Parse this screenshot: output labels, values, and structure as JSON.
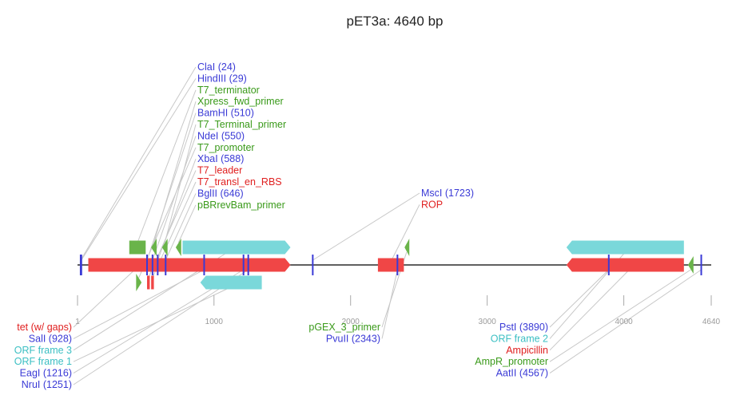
{
  "title": "pET3a: 4640 bp",
  "length": 4640,
  "colors": {
    "restriction": "#3a3ad6",
    "red_feature": "#f04646",
    "cyan_feature": "#7ad8da",
    "green_feature": "#6ab44a",
    "label_red": "#e02020",
    "label_cyan": "#3bbfc3",
    "label_green": "#3a9a1a",
    "leader": "#c8c8c8",
    "axis": "#000000",
    "ruler": "#aaaaaa"
  },
  "ticks": [
    {
      "pos": 1,
      "label": "1"
    },
    {
      "pos": 1000,
      "label": "1000"
    },
    {
      "pos": 2000,
      "label": "2000"
    },
    {
      "pos": 3000,
      "label": "3000"
    },
    {
      "pos": 4000,
      "label": "4000"
    },
    {
      "pos": 4640,
      "label": "4640"
    }
  ],
  "sites": [
    {
      "name": "ClaI (24)",
      "pos": 24
    },
    {
      "name": "HindIII (29)",
      "pos": 29
    },
    {
      "name": "BamHI (510)",
      "pos": 510
    },
    {
      "name": "NdeI (550)",
      "pos": 550
    },
    {
      "name": "XbaI (588)",
      "pos": 588
    },
    {
      "name": "BglII (646)",
      "pos": 646
    },
    {
      "name": "SalI (928)",
      "pos": 928
    },
    {
      "name": "EagI (1216)",
      "pos": 1216
    },
    {
      "name": "NruI (1251)",
      "pos": 1251
    },
    {
      "name": "MscI (1723)",
      "pos": 1723
    },
    {
      "name": "PvuII (2343)",
      "pos": 2343
    },
    {
      "name": "PstI (3890)",
      "pos": 3890
    },
    {
      "name": "AatII (4567)",
      "pos": 4567
    }
  ],
  "features": [
    {
      "name": "tet (w/ gaps)",
      "color": "red",
      "row": "main",
      "start": 80,
      "end": 1560,
      "dir": "fwd"
    },
    {
      "name": "T7_terminator",
      "color": "green",
      "row": "top",
      "start": 380,
      "end": 500,
      "dir": "none"
    },
    {
      "name": "Xpress_fwd_primer",
      "color": "green",
      "row": "top",
      "start": 540,
      "end": 580,
      "dir": "rev"
    },
    {
      "name": "T7_Terminal_primer",
      "color": "green",
      "row": "top",
      "start": 620,
      "end": 660,
      "dir": "rev"
    },
    {
      "name": "T7_promoter",
      "color": "green",
      "row": "bot",
      "start": 430,
      "end": 470,
      "dir": "fwd"
    },
    {
      "name": "T7_leader",
      "color": "red",
      "row": "bot",
      "start": 510,
      "end": 530,
      "dir": "none"
    },
    {
      "name": "T7_transl_en_RBS",
      "color": "red",
      "row": "bot",
      "start": 540,
      "end": 560,
      "dir": "none"
    },
    {
      "name": "pBRrevBam_primer",
      "color": "green",
      "row": "top",
      "start": 720,
      "end": 760,
      "dir": "rev"
    },
    {
      "name": "ORF frame 3",
      "color": "cyan",
      "row": "top",
      "start": 770,
      "end": 1560,
      "dir": "fwd"
    },
    {
      "name": "ORF frame 1",
      "color": "cyan",
      "row": "bot",
      "start": 900,
      "end": 1350,
      "dir": "rev"
    },
    {
      "name": "ROP",
      "color": "red",
      "row": "main",
      "start": 2200,
      "end": 2390,
      "dir": "none"
    },
    {
      "name": "pGEX_3_primer",
      "color": "green",
      "row": "top",
      "start": 2395,
      "end": 2430,
      "dir": "rev"
    },
    {
      "name": "Ampicillin",
      "color": "red",
      "row": "main",
      "start": 3580,
      "end": 4440,
      "dir": "rev"
    },
    {
      "name": "ORF frame 2",
      "color": "cyan",
      "row": "top",
      "start": 3580,
      "end": 4440,
      "dir": "rev"
    },
    {
      "name": "AmpR_promoter",
      "color": "green",
      "row": "main",
      "start": 4470,
      "end": 4510,
      "dir": "rev"
    }
  ],
  "labels_top_left": [
    {
      "text": "ClaI (24)",
      "color": "restriction",
      "target": 24,
      "row": "main"
    },
    {
      "text": "HindIII (29)",
      "color": "restriction",
      "target": 29,
      "row": "main"
    },
    {
      "text": "T7_terminator",
      "color": "label_green",
      "target": 440,
      "row": "top"
    },
    {
      "text": "Xpress_fwd_primer",
      "color": "label_green",
      "target": 560,
      "row": "top"
    },
    {
      "text": "BamHI (510)",
      "color": "restriction",
      "target": 510,
      "row": "main"
    },
    {
      "text": "T7_Terminal_primer",
      "color": "label_green",
      "target": 640,
      "row": "top"
    },
    {
      "text": "NdeI (550)",
      "color": "restriction",
      "target": 550,
      "row": "main"
    },
    {
      "text": "T7_promoter",
      "color": "label_green",
      "target": 450,
      "row": "bot"
    },
    {
      "text": "XbaI (588)",
      "color": "restriction",
      "target": 588,
      "row": "main"
    },
    {
      "text": "T7_leader",
      "color": "label_red",
      "target": 520,
      "row": "bot"
    },
    {
      "text": "T7_transl_en_RBS",
      "color": "label_red",
      "target": 550,
      "row": "bot"
    },
    {
      "text": "BglII (646)",
      "color": "restriction",
      "target": 646,
      "row": "main"
    },
    {
      "text": "pBRrevBam_primer",
      "color": "label_green",
      "target": 740,
      "row": "top"
    }
  ],
  "labels_top_mid": [
    {
      "text": "MscI (1723)",
      "color": "restriction",
      "target": 1723,
      "row": "main"
    },
    {
      "text": "ROP",
      "color": "label_red",
      "target": 2300,
      "row": "main"
    }
  ],
  "labels_bottom_left": [
    {
      "text": "tet (w/ gaps)",
      "color": "label_red",
      "target": 420,
      "row": "main"
    },
    {
      "text": "SalI (928)",
      "color": "restriction",
      "target": 928,
      "row": "main"
    },
    {
      "text": "ORF frame 3",
      "color": "label_cyan",
      "target": 1100,
      "row": "top"
    },
    {
      "text": "ORF frame 1",
      "color": "label_cyan",
      "target": 1120,
      "row": "bot"
    },
    {
      "text": "EagI (1216)",
      "color": "restriction",
      "target": 1216,
      "row": "main"
    },
    {
      "text": "NruI (1251)",
      "color": "restriction",
      "target": 1251,
      "row": "main"
    }
  ],
  "labels_bottom_mid": [
    {
      "text": "pGEX_3_primer",
      "color": "label_green",
      "target": 2410,
      "row": "top"
    },
    {
      "text": "PvuII (2343)",
      "color": "restriction",
      "target": 2343,
      "row": "main"
    }
  ],
  "labels_bottom_right": [
    {
      "text": "PstI (3890)",
      "color": "restriction",
      "target": 3890,
      "row": "main"
    },
    {
      "text": "ORF frame 2",
      "color": "label_cyan",
      "target": 4010,
      "row": "top"
    },
    {
      "text": "Ampicillin",
      "color": "label_red",
      "target": 4040,
      "row": "main"
    },
    {
      "text": "AmpR_promoter",
      "color": "label_green",
      "target": 4490,
      "row": "main"
    },
    {
      "text": "AatII (4567)",
      "color": "restriction",
      "target": 4567,
      "row": "main"
    }
  ]
}
